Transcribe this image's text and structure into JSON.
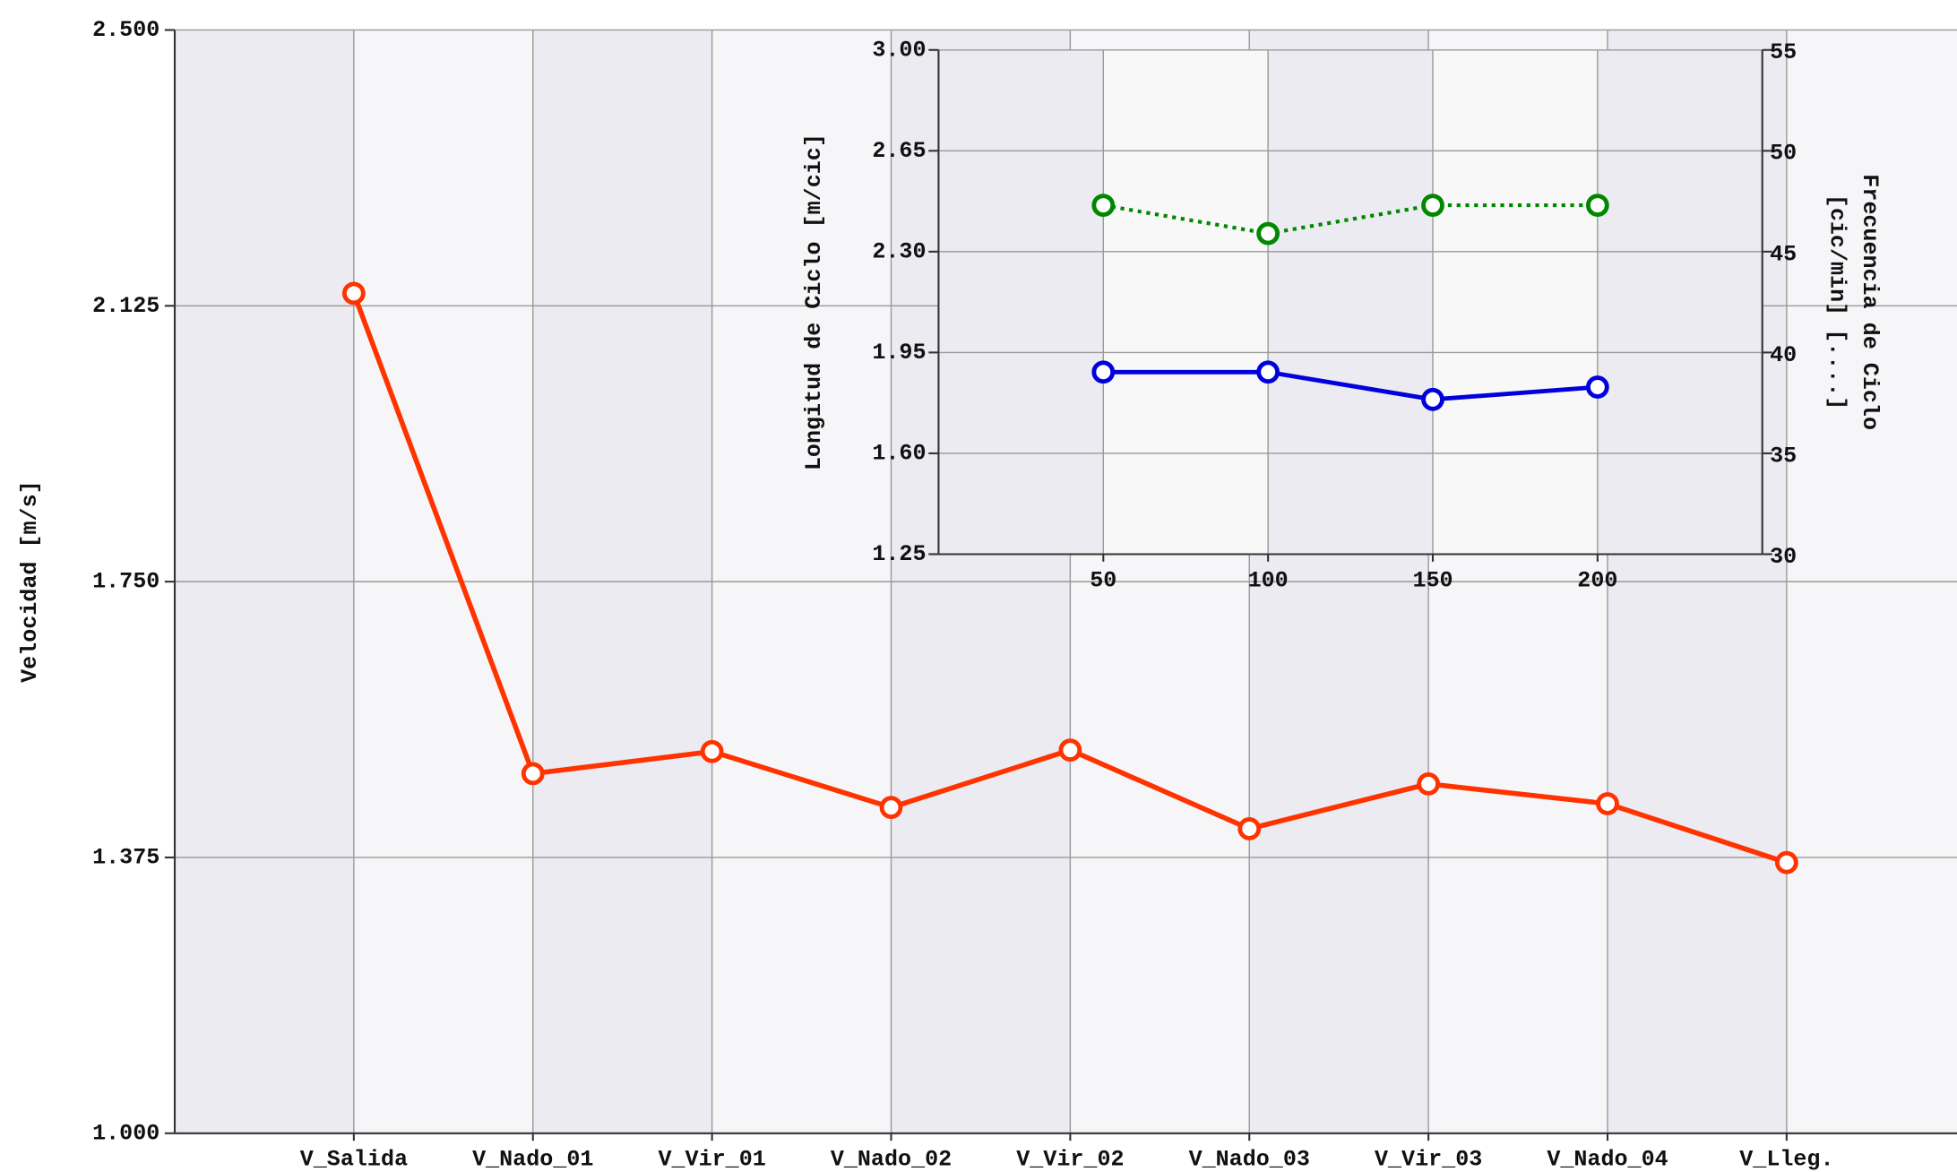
{
  "chart_data": [
    {
      "type": "line",
      "ylabel": "Velocidad [m/s]",
      "categories": [
        "V_Salida",
        "V_Nado_01",
        "V_Vir_01",
        "V_Nado_02",
        "V_Vir_02",
        "V_Nado_03",
        "V_Vir_03",
        "V_Nado_04",
        "V_Lleg."
      ],
      "values": [
        2.142,
        1.489,
        1.519,
        1.443,
        1.521,
        1.414,
        1.475,
        1.448,
        1.368
      ],
      "color": "#ff3300",
      "ylim": [
        1.0,
        2.5
      ],
      "yticks": [
        {
          "value": 1.0,
          "label": "1.000"
        },
        {
          "value": 1.375,
          "label": "1.375"
        },
        {
          "value": 1.75,
          "label": "1.750"
        },
        {
          "value": 2.125,
          "label": "2.125"
        },
        {
          "value": 2.5,
          "label": "2.500"
        }
      ],
      "grid": true
    },
    {
      "type": "line",
      "ylabel": "Longitud de Ciclo [m/cic]",
      "y2label": [
        "Frecuencia de Ciclo",
        "[cic/min] [....]"
      ],
      "x": [
        50,
        100,
        150,
        200
      ],
      "xlim": [
        0,
        250
      ],
      "xticks": [
        50,
        100,
        150,
        200
      ],
      "ylim": [
        1.25,
        3.0
      ],
      "yticks": [
        1.25,
        {
          "value": 1.6,
          "label": "1.60"
        },
        1.95,
        {
          "value": 2.3,
          "label": "2.30"
        },
        2.65,
        {
          "value": 3.0,
          "label": "3.00"
        }
      ],
      "y2lim": [
        30,
        55
      ],
      "y2ticks": [
        30,
        35,
        40,
        45,
        50,
        55
      ],
      "grid": true,
      "series": [
        {
          "color": "#0000dd",
          "values": [
            1.882,
            1.882,
            1.787,
            1.83
          ]
        },
        {
          "color": "#008800",
          "values": [
            47.3,
            45.9,
            47.3,
            47.3
          ],
          "axis": "y2",
          "dash": "dotted"
        }
      ]
    }
  ]
}
